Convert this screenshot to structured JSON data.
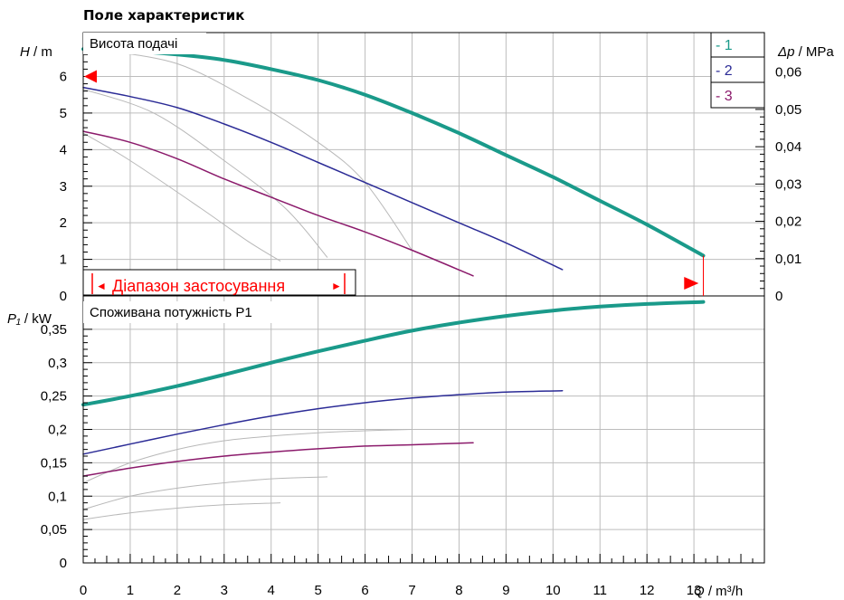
{
  "chart_data": {
    "type": "line",
    "title": "Поле характеристик",
    "x": {
      "label_var": "Q",
      "label_unit": " / m³/h",
      "ticks": [
        0,
        1,
        2,
        3,
        4,
        5,
        6,
        7,
        8,
        9,
        10,
        11,
        12,
        13
      ],
      "tick_labels": [
        "0",
        "1",
        "2",
        "3",
        "4",
        "5",
        "6",
        "7",
        "8",
        "9",
        "10",
        "11",
        "12",
        "13"
      ],
      "range": [
        0,
        14.5
      ]
    },
    "head_panel": {
      "title": "Висота подачі",
      "y_var": "H",
      "y_unit": " / m",
      "y_ticks": [
        0,
        1,
        2,
        3,
        4,
        5,
        6
      ],
      "y_tick_labels": [
        "0",
        "1",
        "2",
        "3",
        "4",
        "5",
        "6"
      ],
      "y_range": [
        0,
        7.2
      ],
      "right_var": "Δp",
      "right_unit": " / MPa",
      "right_ticks": [
        0,
        0.01,
        0.02,
        0.03,
        0.04,
        0.05,
        0.06
      ],
      "right_tick_labels": [
        "0",
        "0,01",
        "0,02",
        "0,03",
        "0,04",
        "0,05",
        "0,06"
      ],
      "right_range": [
        0,
        0.0706
      ],
      "range_label": "Діапазон застосування",
      "range_start_arrow": "◄",
      "range_end_arrow": "►",
      "marker_head": 6.0,
      "marker_flow": 13.1,
      "series": [
        {
          "name": "1",
          "color": "#1a9a8a",
          "width": 4,
          "points": [
            [
              0,
              6.75
            ],
            [
              1,
              6.7
            ],
            [
              2,
              6.6
            ],
            [
              3,
              6.45
            ],
            [
              4,
              6.2
            ],
            [
              5,
              5.9
            ],
            [
              6,
              5.5
            ],
            [
              7,
              5.0
            ],
            [
              8,
              4.45
            ],
            [
              9,
              3.85
            ],
            [
              10,
              3.25
            ],
            [
              11,
              2.6
            ],
            [
              12,
              1.95
            ],
            [
              13.2,
              1.1
            ]
          ]
        },
        {
          "name": "2",
          "color": "#2b2b96",
          "width": 1.5,
          "points": [
            [
              0,
              5.7
            ],
            [
              1,
              5.45
            ],
            [
              2,
              5.15
            ],
            [
              3,
              4.7
            ],
            [
              4,
              4.2
            ],
            [
              5,
              3.65
            ],
            [
              6,
              3.1
            ],
            [
              7,
              2.55
            ],
            [
              8,
              2.0
            ],
            [
              9,
              1.45
            ],
            [
              10.2,
              0.72
            ]
          ]
        },
        {
          "name": "3",
          "color": "#8b1a6b",
          "width": 1.5,
          "points": [
            [
              0,
              4.5
            ],
            [
              1,
              4.2
            ],
            [
              2,
              3.75
            ],
            [
              3,
              3.2
            ],
            [
              4,
              2.7
            ],
            [
              5,
              2.2
            ],
            [
              6,
              1.75
            ],
            [
              7,
              1.25
            ],
            [
              8.3,
              0.55
            ]
          ]
        }
      ],
      "grey_curves": [
        [
          [
            0.5,
            6.7
          ],
          [
            2,
            6.35
          ],
          [
            3.5,
            5.4
          ],
          [
            5,
            4.2
          ],
          [
            6,
            3.1
          ],
          [
            7,
            1.25
          ]
        ],
        [
          [
            0,
            5.65
          ],
          [
            1.5,
            5.0
          ],
          [
            3,
            3.7
          ],
          [
            4.3,
            2.4
          ],
          [
            5.2,
            1.05
          ]
        ],
        [
          [
            0,
            4.45
          ],
          [
            1,
            3.7
          ],
          [
            2.5,
            2.4
          ],
          [
            3.5,
            1.5
          ],
          [
            4.2,
            0.95
          ]
        ]
      ]
    },
    "power_panel": {
      "title": "Споживана потужність P1",
      "y_var": "P₁",
      "y_unit": " / kW",
      "y_ticks": [
        0,
        0.05,
        0.1,
        0.15,
        0.2,
        0.25,
        0.3,
        0.35
      ],
      "y_tick_labels": [
        "0",
        "0,05",
        "0,1",
        "0,15",
        "0,2",
        "0,25",
        "0,3",
        "0,35"
      ],
      "y_range": [
        0,
        0.4
      ],
      "series": [
        {
          "name": "1",
          "color": "#1a9a8a",
          "width": 4,
          "points": [
            [
              0,
              0.237
            ],
            [
              1,
              0.25
            ],
            [
              2,
              0.265
            ],
            [
              3,
              0.282
            ],
            [
              4,
              0.3
            ],
            [
              5,
              0.317
            ],
            [
              6,
              0.333
            ],
            [
              7,
              0.348
            ],
            [
              8,
              0.36
            ],
            [
              9,
              0.37
            ],
            [
              10,
              0.378
            ],
            [
              11,
              0.384
            ],
            [
              12,
              0.388
            ],
            [
              13.2,
              0.391
            ]
          ]
        },
        {
          "name": "2",
          "color": "#2b2b96",
          "width": 1.5,
          "points": [
            [
              0,
              0.163
            ],
            [
              1,
              0.178
            ],
            [
              2,
              0.193
            ],
            [
              3,
              0.207
            ],
            [
              4,
              0.22
            ],
            [
              5,
              0.231
            ],
            [
              6,
              0.24
            ],
            [
              7,
              0.247
            ],
            [
              8,
              0.252
            ],
            [
              9,
              0.256
            ],
            [
              10.2,
              0.258
            ]
          ]
        },
        {
          "name": "3",
          "color": "#8b1a6b",
          "width": 1.5,
          "points": [
            [
              0,
              0.13
            ],
            [
              1,
              0.142
            ],
            [
              2,
              0.152
            ],
            [
              3,
              0.16
            ],
            [
              4,
              0.166
            ],
            [
              5,
              0.171
            ],
            [
              6,
              0.175
            ],
            [
              7,
              0.177
            ],
            [
              8.3,
              0.18
            ]
          ]
        }
      ],
      "grey_curves": [
        [
          [
            0,
            0.12
          ],
          [
            1,
            0.15
          ],
          [
            2,
            0.17
          ],
          [
            3,
            0.183
          ],
          [
            4,
            0.19
          ],
          [
            5,
            0.195
          ],
          [
            6,
            0.198
          ],
          [
            7,
            0.2
          ]
        ],
        [
          [
            0,
            0.08
          ],
          [
            1,
            0.1
          ],
          [
            2,
            0.112
          ],
          [
            3,
            0.12
          ],
          [
            4,
            0.126
          ],
          [
            5.2,
            0.129
          ]
        ],
        [
          [
            0,
            0.065
          ],
          [
            1,
            0.075
          ],
          [
            2,
            0.082
          ],
          [
            3,
            0.087
          ],
          [
            4.2,
            0.09
          ]
        ]
      ]
    },
    "legend": {
      "placement": "top-right",
      "items": [
        {
          "label": "- 1",
          "color": "#1a9a8a"
        },
        {
          "label": "- 2",
          "color": "#2b2b96"
        },
        {
          "label": "- 3",
          "color": "#8b1a6b"
        }
      ]
    },
    "marker_color": "#ff0000"
  }
}
